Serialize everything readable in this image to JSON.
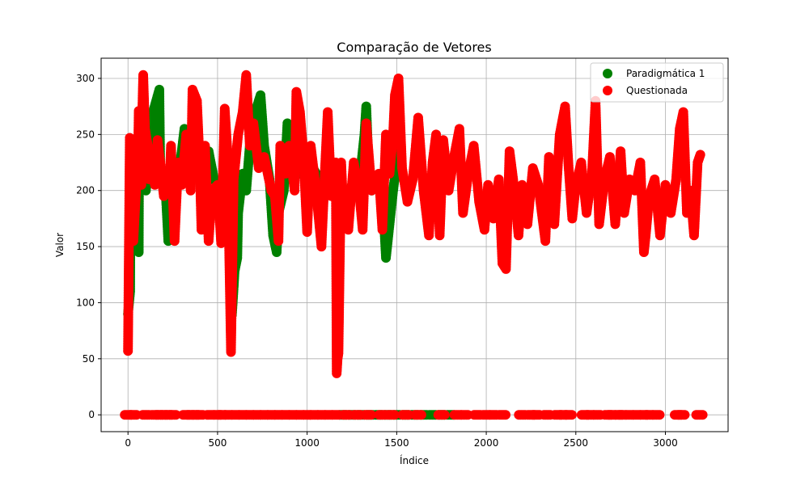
{
  "chart_data": {
    "type": "scatter",
    "title": "Comparação de Vetores",
    "xlabel": "Índice",
    "ylabel": "Valor",
    "xlim": [
      -150,
      3350
    ],
    "ylim": [
      -15,
      318
    ],
    "xticks": [
      0,
      500,
      1000,
      1500,
      2000,
      2500,
      3000
    ],
    "yticks": [
      0,
      50,
      100,
      150,
      200,
      250,
      300
    ],
    "grid": true,
    "legend_position": "top-right",
    "series": [
      {
        "name": "Paradigmática 1",
        "color": "#008000",
        "segments": [
          [
            0,
            90
          ],
          [
            12,
            110
          ],
          [
            14,
            200
          ],
          [
            40,
            215
          ],
          [
            60,
            145
          ],
          [
            62,
            240
          ],
          [
            100,
            200
          ],
          [
            140,
            270
          ],
          [
            175,
            290
          ],
          [
            180,
            220
          ],
          [
            210,
            200
          ],
          [
            225,
            155
          ],
          [
            300,
            235
          ],
          [
            315,
            255
          ],
          [
            330,
            210
          ],
          [
            360,
            230
          ],
          [
            400,
            235
          ],
          [
            420,
            200
          ],
          [
            450,
            235
          ],
          [
            480,
            210
          ],
          [
            520,
            200
          ],
          [
            560,
            170
          ],
          [
            575,
            160
          ],
          [
            580,
            89
          ],
          [
            590,
            114
          ],
          [
            595,
            128
          ],
          [
            610,
            140
          ],
          [
            615,
            180
          ],
          [
            640,
            215
          ],
          [
            660,
            200
          ],
          [
            690,
            260
          ],
          [
            740,
            285
          ],
          [
            760,
            240
          ],
          [
            790,
            210
          ],
          [
            810,
            160
          ],
          [
            830,
            145
          ],
          [
            840,
            180
          ],
          [
            870,
            200
          ],
          [
            890,
            260
          ],
          [
            920,
            230
          ],
          [
            960,
            215
          ],
          [
            1000,
            230
          ],
          [
            1050,
            215
          ],
          [
            1100,
            210
          ],
          [
            1150,
            205
          ],
          [
            1200,
            200
          ],
          [
            1240,
            200
          ],
          [
            1260,
            210
          ],
          [
            1300,
            220
          ],
          [
            1320,
            250
          ],
          [
            1330,
            275
          ],
          [
            1345,
            215
          ],
          [
            1360,
            200
          ],
          [
            1390,
            210
          ],
          [
            1420,
            200
          ],
          [
            1440,
            140
          ],
          [
            1460,
            170
          ],
          [
            1480,
            200
          ],
          [
            1500,
            225
          ],
          [
            1510,
            258
          ]
        ],
        "zeros": [
          1200,
          1250,
          1300,
          1350,
          1400,
          1450,
          1500,
          1550,
          1600,
          1650,
          1700,
          1750,
          1800
        ]
      },
      {
        "name": "Questionada",
        "color": "#ff0000",
        "segments": [
          [
            0,
            57
          ],
          [
            10,
            247
          ],
          [
            25,
            240
          ],
          [
            30,
            155
          ],
          [
            45,
            200
          ],
          [
            55,
            220
          ],
          [
            60,
            271
          ],
          [
            75,
            205
          ],
          [
            80,
            272
          ],
          [
            85,
            303
          ],
          [
            95,
            255
          ],
          [
            110,
            240
          ],
          [
            118,
            210
          ],
          [
            130,
            220
          ],
          [
            150,
            205
          ],
          [
            165,
            245
          ],
          [
            180,
            225
          ],
          [
            200,
            195
          ],
          [
            215,
            210
          ],
          [
            230,
            200
          ],
          [
            240,
            240
          ],
          [
            260,
            155
          ],
          [
            280,
            225
          ],
          [
            300,
            205
          ],
          [
            325,
            250
          ],
          [
            350,
            200
          ],
          [
            360,
            290
          ],
          [
            385,
            280
          ],
          [
            400,
            225
          ],
          [
            410,
            165
          ],
          [
            430,
            240
          ],
          [
            450,
            155
          ],
          [
            470,
            200
          ],
          [
            500,
            205
          ],
          [
            520,
            153
          ],
          [
            540,
            273
          ],
          [
            555,
            235
          ],
          [
            575,
            56
          ],
          [
            590,
            210
          ],
          [
            615,
            250
          ],
          [
            640,
            270
          ],
          [
            660,
            303
          ],
          [
            680,
            240
          ],
          [
            700,
            260
          ],
          [
            730,
            220
          ],
          [
            760,
            230
          ],
          [
            800,
            200
          ],
          [
            820,
            195
          ],
          [
            840,
            155
          ],
          [
            850,
            240
          ],
          [
            880,
            215
          ],
          [
            900,
            240
          ],
          [
            930,
            200
          ],
          [
            940,
            288
          ],
          [
            960,
            270
          ],
          [
            980,
            230
          ],
          [
            1000,
            163
          ],
          [
            1020,
            240
          ],
          [
            1050,
            200
          ],
          [
            1080,
            150
          ],
          [
            1100,
            220
          ],
          [
            1115,
            270
          ],
          [
            1135,
            195
          ],
          [
            1150,
            215
          ],
          [
            1160,
            225
          ],
          [
            1165,
            37
          ],
          [
            1170,
            50
          ],
          [
            1175,
            55
          ],
          [
            1190,
            225
          ],
          [
            1200,
            190
          ],
          [
            1230,
            165
          ],
          [
            1260,
            225
          ],
          [
            1290,
            200
          ],
          [
            1310,
            165
          ],
          [
            1330,
            260
          ],
          [
            1360,
            200
          ],
          [
            1400,
            215
          ],
          [
            1420,
            165
          ],
          [
            1440,
            250
          ],
          [
            1460,
            215
          ],
          [
            1480,
            250
          ],
          [
            1490,
            285
          ],
          [
            1510,
            300
          ],
          [
            1530,
            220
          ],
          [
            1560,
            190
          ],
          [
            1590,
            210
          ],
          [
            1620,
            265
          ],
          [
            1650,
            200
          ],
          [
            1680,
            160
          ],
          [
            1700,
            225
          ],
          [
            1720,
            250
          ],
          [
            1740,
            160
          ],
          [
            1760,
            245
          ],
          [
            1790,
            200
          ],
          [
            1820,
            230
          ],
          [
            1850,
            255
          ],
          [
            1870,
            180
          ],
          [
            1900,
            215
          ],
          [
            1930,
            240
          ],
          [
            1960,
            190
          ],
          [
            1990,
            165
          ],
          [
            2010,
            205
          ],
          [
            2040,
            175
          ],
          [
            2070,
            210
          ],
          [
            2090,
            135
          ],
          [
            2110,
            130
          ],
          [
            2130,
            235
          ],
          [
            2150,
            210
          ],
          [
            2180,
            160
          ],
          [
            2200,
            205
          ],
          [
            2230,
            170
          ],
          [
            2260,
            220
          ],
          [
            2290,
            205
          ],
          [
            2330,
            155
          ],
          [
            2350,
            230
          ],
          [
            2380,
            170
          ],
          [
            2410,
            250
          ],
          [
            2440,
            275
          ],
          [
            2460,
            220
          ],
          [
            2480,
            175
          ],
          [
            2500,
            205
          ],
          [
            2530,
            225
          ],
          [
            2560,
            180
          ],
          [
            2590,
            215
          ],
          [
            2610,
            280
          ],
          [
            2630,
            170
          ],
          [
            2660,
            210
          ],
          [
            2690,
            230
          ],
          [
            2720,
            170
          ],
          [
            2750,
            235
          ],
          [
            2770,
            180
          ],
          [
            2800,
            210
          ],
          [
            2830,
            200
          ],
          [
            2860,
            225
          ],
          [
            2880,
            145
          ],
          [
            2890,
            160
          ],
          [
            2910,
            195
          ],
          [
            2940,
            210
          ],
          [
            2970,
            160
          ],
          [
            3000,
            205
          ],
          [
            3030,
            180
          ],
          [
            3060,
            210
          ],
          [
            3080,
            255
          ],
          [
            3100,
            270
          ],
          [
            3120,
            180
          ],
          [
            3140,
            200
          ],
          [
            3160,
            160
          ],
          [
            3180,
            225
          ],
          [
            3195,
            232
          ]
        ],
        "zeros": [
          0,
          30,
          100,
          150,
          175,
          200,
          225,
          250,
          325,
          350,
          375,
          400,
          460,
          500,
          525,
          560,
          600,
          640,
          680,
          720,
          760,
          800,
          840,
          880,
          920,
          960,
          1000,
          1040,
          1080,
          1120,
          1160,
          1220,
          1280,
          1340,
          1420,
          1470,
          1550,
          1620,
          1750,
          1840,
          1880,
          1950,
          2000,
          2040,
          2090,
          2200,
          2250,
          2280,
          2340,
          2400,
          2430,
          2460,
          2550,
          2580,
          2620,
          2680,
          2700,
          2740,
          2760,
          2800,
          2840,
          2880,
          2910,
          2950,
          3070,
          3090,
          3190
        ]
      }
    ]
  }
}
